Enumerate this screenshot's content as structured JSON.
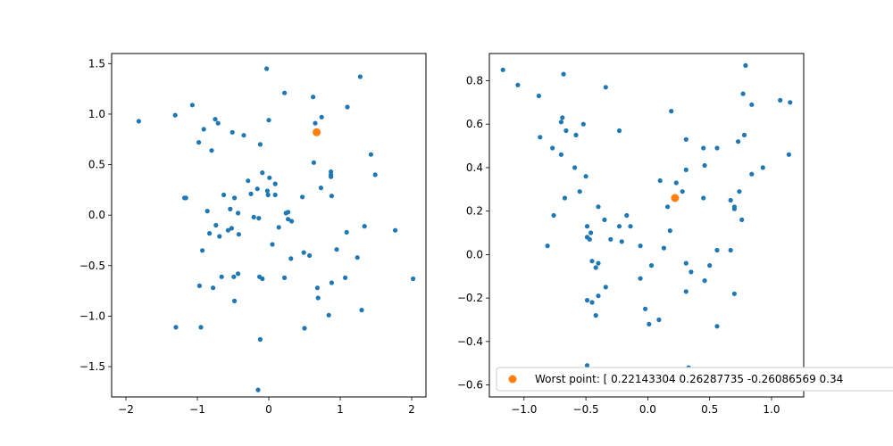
{
  "colors": {
    "points": "#1f77b4",
    "worst": "#ff7f0e"
  },
  "chart_data": [
    {
      "type": "scatter",
      "title": "",
      "xlabel": "",
      "ylabel": "",
      "xlim": [
        -2.2,
        2.2
      ],
      "ylim": [
        -1.8,
        1.6
      ],
      "xticks": [
        -2,
        -1,
        0,
        1,
        2
      ],
      "yticks": [
        -1.5,
        -1.0,
        -0.5,
        0.0,
        0.5,
        1.0,
        1.5
      ],
      "xtick_labels": [
        "−2",
        "−1",
        "0",
        "1",
        "2"
      ],
      "ytick_labels": [
        "−1.5",
        "−1.0",
        "−0.5",
        "0.0",
        "0.5",
        "1.0",
        "1.5"
      ],
      "series": [
        {
          "points": [
            [
              -1.82,
              0.93
            ],
            [
              -1.31,
              0.99
            ],
            [
              -1.07,
              1.09
            ],
            [
              -0.98,
              0.72
            ],
            [
              -0.91,
              0.85
            ],
            [
              -0.8,
              0.64
            ],
            [
              -0.75,
              0.95
            ],
            [
              -0.71,
              0.91
            ],
            [
              -0.51,
              0.82
            ],
            [
              -0.35,
              0.79
            ],
            [
              -0.12,
              0.7
            ],
            [
              -0.03,
              1.45
            ],
            [
              0.0,
              0.94
            ],
            [
              0.22,
              1.21
            ],
            [
              0.62,
              1.17
            ],
            [
              0.65,
              0.91
            ],
            [
              0.74,
              0.97
            ],
            [
              1.1,
              1.07
            ],
            [
              1.28,
              1.37
            ],
            [
              1.43,
              0.6
            ],
            [
              1.49,
              0.4
            ],
            [
              0.87,
              0.43
            ],
            [
              0.87,
              0.4
            ],
            [
              0.87,
              0.38
            ],
            [
              0.63,
              0.52
            ],
            [
              0.73,
              0.27
            ],
            [
              0.88,
              0.19
            ],
            [
              -0.29,
              0.34
            ],
            [
              -0.09,
              0.42
            ],
            [
              -0.16,
              0.26
            ],
            [
              0.01,
              0.37
            ],
            [
              0.09,
              0.31
            ],
            [
              -0.02,
              0.24
            ],
            [
              0.09,
              0.2
            ],
            [
              -0.01,
              0.2
            ],
            [
              -0.25,
              0.21
            ],
            [
              -0.63,
              0.2
            ],
            [
              -0.54,
              0.06
            ],
            [
              -0.48,
              0.17
            ],
            [
              -0.43,
              0.02
            ],
            [
              -1.18,
              0.17
            ],
            [
              -1.16,
              0.17
            ],
            [
              -0.86,
              0.04
            ],
            [
              -0.74,
              -0.1
            ],
            [
              -0.83,
              -0.18
            ],
            [
              -0.69,
              -0.21
            ],
            [
              -0.57,
              -0.15
            ],
            [
              -0.52,
              -0.13
            ],
            [
              -0.42,
              -0.19
            ],
            [
              -0.21,
              -0.02
            ],
            [
              -0.14,
              -0.03
            ],
            [
              0.24,
              0.02
            ],
            [
              0.27,
              0.03
            ],
            [
              0.27,
              -0.04
            ],
            [
              0.32,
              -0.06
            ],
            [
              0.47,
              0.18
            ],
            [
              0.14,
              -0.12
            ],
            [
              0.05,
              -0.29
            ],
            [
              0.49,
              -0.37
            ],
            [
              0.57,
              -0.4
            ],
            [
              1.09,
              -0.17
            ],
            [
              1.34,
              -0.11
            ],
            [
              1.77,
              -0.15
            ],
            [
              0.95,
              -0.34
            ],
            [
              0.31,
              -0.43
            ],
            [
              1.24,
              -0.42
            ],
            [
              -0.93,
              -0.35
            ],
            [
              -0.49,
              -0.61
            ],
            [
              -0.43,
              -0.58
            ],
            [
              -0.66,
              -0.61
            ],
            [
              -0.13,
              -0.61
            ],
            [
              -0.09,
              -0.63
            ],
            [
              0.22,
              -0.62
            ],
            [
              0.68,
              -0.72
            ],
            [
              0.69,
              -0.82
            ],
            [
              0.88,
              -0.67
            ],
            [
              1.07,
              -0.62
            ],
            [
              1.3,
              -0.94
            ],
            [
              2.02,
              -0.63
            ],
            [
              -0.97,
              -0.7
            ],
            [
              -0.78,
              -0.72
            ],
            [
              -0.48,
              -0.85
            ],
            [
              0.84,
              -0.99
            ],
            [
              -1.3,
              -1.11
            ],
            [
              -0.95,
              -1.11
            ],
            [
              0.5,
              -1.12
            ],
            [
              -0.12,
              -1.23
            ],
            [
              -0.15,
              -1.73
            ]
          ]
        },
        {
          "points": [
            [
              0.67,
              0.82
            ]
          ]
        }
      ]
    },
    {
      "type": "scatter",
      "title": "",
      "xlabel": "",
      "ylabel": "",
      "xlim": [
        -1.28,
        1.26
      ],
      "ylim": [
        -0.655,
        0.925
      ],
      "xticks": [
        -1.0,
        -0.5,
        0.0,
        0.5,
        1.0
      ],
      "yticks": [
        -0.6,
        -0.4,
        -0.2,
        0.0,
        0.2,
        0.4,
        0.6,
        0.8
      ],
      "xtick_labels": [
        "−1.0",
        "−0.5",
        "0.0",
        "0.5",
        "1.0"
      ],
      "ytick_labels": [
        "−0.6",
        "−0.4",
        "−0.2",
        "0.0",
        "0.2",
        "0.4",
        "0.6",
        "0.8"
      ],
      "legend": {
        "label": "Worst point: [ 0.22143304  0.26287735 -0.26086569  0.34",
        "placement": "lower-right"
      },
      "series": [
        {
          "points": [
            [
              -1.17,
              0.85
            ],
            [
              -1.05,
              0.78
            ],
            [
              -0.88,
              0.73
            ],
            [
              -0.68,
              0.83
            ],
            [
              -0.34,
              0.77
            ],
            [
              -0.69,
              0.63
            ],
            [
              -0.7,
              0.61
            ],
            [
              -0.66,
              0.57
            ],
            [
              -0.58,
              0.55
            ],
            [
              -0.52,
              0.6
            ],
            [
              -0.87,
              0.54
            ],
            [
              -0.77,
              0.49
            ],
            [
              -0.7,
              0.46
            ],
            [
              -0.59,
              0.4
            ],
            [
              -0.5,
              0.36
            ],
            [
              -0.55,
              0.29
            ],
            [
              -0.67,
              0.26
            ],
            [
              -0.23,
              0.57
            ],
            [
              0.19,
              0.66
            ],
            [
              0.31,
              0.53
            ],
            [
              0.45,
              0.49
            ],
            [
              0.56,
              0.49
            ],
            [
              0.73,
              0.52
            ],
            [
              0.78,
              0.55
            ],
            [
              0.77,
              0.74
            ],
            [
              0.79,
              0.87
            ],
            [
              0.84,
              0.69
            ],
            [
              1.07,
              0.71
            ],
            [
              1.15,
              0.7
            ],
            [
              1.14,
              0.46
            ],
            [
              0.93,
              0.4
            ],
            [
              0.84,
              0.37
            ],
            [
              0.46,
              0.41
            ],
            [
              0.31,
              0.39
            ],
            [
              0.28,
              0.29
            ],
            [
              0.23,
              0.33
            ],
            [
              0.1,
              0.34
            ],
            [
              0.16,
              0.22
            ],
            [
              0.45,
              0.26
            ],
            [
              0.67,
              0.25
            ],
            [
              0.7,
              0.21
            ],
            [
              0.7,
              0.22
            ],
            [
              0.74,
              0.29
            ],
            [
              0.76,
              0.16
            ],
            [
              -0.76,
              0.18
            ],
            [
              -0.4,
              0.22
            ],
            [
              -0.35,
              0.16
            ],
            [
              -0.23,
              0.13
            ],
            [
              -0.17,
              0.18
            ],
            [
              -0.14,
              0.13
            ],
            [
              -0.49,
              0.13
            ],
            [
              -0.46,
              0.1
            ],
            [
              -0.47,
              0.07
            ],
            [
              -0.49,
              0.08
            ],
            [
              -0.3,
              0.07
            ],
            [
              -0.21,
              0.06
            ],
            [
              -0.06,
              0.04
            ],
            [
              0.13,
              0.03
            ],
            [
              0.18,
              0.11
            ],
            [
              0.56,
              0.02
            ],
            [
              0.67,
              0.02
            ],
            [
              -0.81,
              0.04
            ],
            [
              -0.45,
              -0.03
            ],
            [
              -0.4,
              -0.04
            ],
            [
              -0.42,
              -0.06
            ],
            [
              0.03,
              -0.05
            ],
            [
              0.31,
              -0.04
            ],
            [
              0.35,
              -0.08
            ],
            [
              0.5,
              -0.05
            ],
            [
              0.46,
              -0.12
            ],
            [
              -0.06,
              -0.11
            ],
            [
              -0.34,
              -0.15
            ],
            [
              -0.4,
              -0.19
            ],
            [
              -0.49,
              -0.21
            ],
            [
              -0.45,
              -0.22
            ],
            [
              -0.42,
              -0.28
            ],
            [
              -0.02,
              -0.25
            ],
            [
              0.01,
              -0.32
            ],
            [
              0.09,
              -0.3
            ],
            [
              0.31,
              -0.17
            ],
            [
              0.7,
              -0.18
            ],
            [
              0.56,
              -0.33
            ],
            [
              -0.49,
              -0.51
            ],
            [
              0.33,
              -0.52
            ]
          ]
        },
        {
          "points": [
            [
              0.22,
              0.26
            ]
          ]
        }
      ]
    }
  ]
}
